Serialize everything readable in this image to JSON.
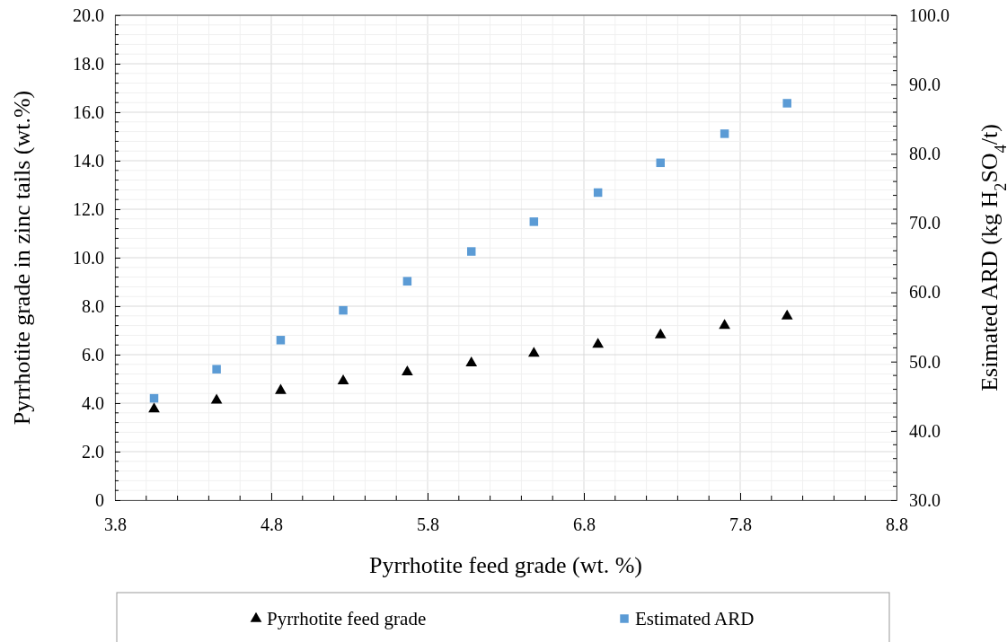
{
  "chart_data": {
    "type": "scatter",
    "xlabel": "Pyrrhotite feed grade (wt. %)",
    "ylabel": "Pyrrhotite  grade in zinc tails (wt.%)",
    "y2label": "Esimated ARD (kg H$_{2}$SO$_{4}$/t)",
    "x": [
      4.05,
      4.45,
      4.86,
      5.26,
      5.67,
      6.08,
      6.48,
      6.89,
      7.29,
      7.7,
      8.1
    ],
    "series": [
      {
        "name": "Pyrrhotite feed grade",
        "color": "#000000",
        "marker": "triangle",
        "values": [
          3.76,
          4.12,
          4.52,
          4.91,
          5.28,
          5.65,
          6.05,
          6.42,
          6.81,
          7.2,
          7.59
        ]
      },
      {
        "name": "Estimated ARD",
        "color": "#5b9bd5",
        "marker": "square",
        "axis": "y2",
        "values": [
          44.7,
          48.9,
          53.1,
          57.4,
          61.6,
          65.9,
          70.2,
          74.4,
          78.7,
          82.9,
          87.3
        ]
      }
    ],
    "xlim": [
      3.8,
      8.8
    ],
    "xticks": [
      3.8,
      4.8,
      5.8,
      6.8,
      7.8,
      8.8
    ],
    "ylim": [
      0,
      20
    ],
    "yticks": [
      0,
      {
        "value": 2,
        "label": "2.0"
      },
      {
        "value": 4,
        "label": "4.0"
      },
      {
        "value": 6,
        "label": "6.0"
      },
      {
        "value": 8,
        "label": "8.0"
      },
      {
        "value": 10,
        "label": "10.0"
      },
      {
        "value": 12,
        "label": "12.0"
      },
      {
        "value": 14,
        "label": "14.0"
      },
      {
        "value": 16,
        "label": "16.0"
      },
      {
        "value": 18,
        "label": "18.0"
      },
      {
        "value": 20,
        "label": "20.0"
      }
    ],
    "y2lim": [
      30,
      100
    ],
    "y2ticks": [
      {
        "value": 30,
        "label": "30.0"
      },
      {
        "value": 40,
        "label": "40.0"
      },
      {
        "value": 50,
        "label": "50.0"
      },
      {
        "value": 60,
        "label": "60.0"
      },
      {
        "value": 70,
        "label": "70.0"
      },
      {
        "value": 80,
        "label": "80.0"
      },
      {
        "value": 90,
        "label": "90.0"
      },
      {
        "value": 100,
        "label": "100.0"
      }
    ],
    "grid": true,
    "legend": "bottom"
  }
}
